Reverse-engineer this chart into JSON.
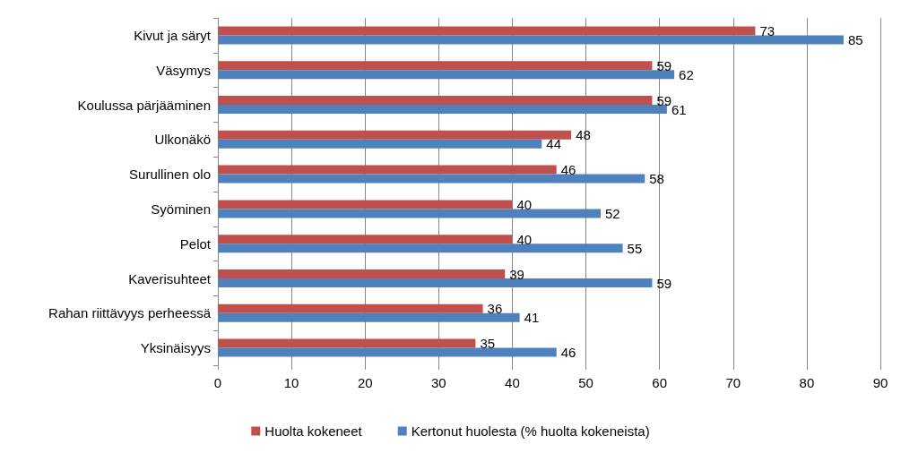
{
  "chart_data": {
    "type": "bar",
    "orientation": "horizontal",
    "categories": [
      "Kivut ja säryt",
      "Väsymys",
      "Koulussa pärjääminen",
      "Ulkonäkö",
      "Surullinen olo",
      "Syöminen",
      "Pelot",
      "Kaverisuhteet",
      "Rahan riittävyys perheessä",
      "Yksinäisyys"
    ],
    "series": [
      {
        "name": "Huolta kokeneet",
        "color": "#c0504d",
        "values": [
          73,
          59,
          59,
          48,
          46,
          40,
          40,
          39,
          36,
          35
        ]
      },
      {
        "name": "Kertonut huolesta (% huolta kokeneista)",
        "color": "#4f81bd",
        "values": [
          85,
          62,
          61,
          44,
          58,
          52,
          55,
          59,
          41,
          46
        ]
      }
    ],
    "xlim": [
      0,
      90
    ],
    "xticks": [
      0,
      10,
      20,
      30,
      40,
      50,
      60,
      70,
      80,
      90
    ],
    "grid": "x",
    "legend": "bottom",
    "data_labels": true
  }
}
